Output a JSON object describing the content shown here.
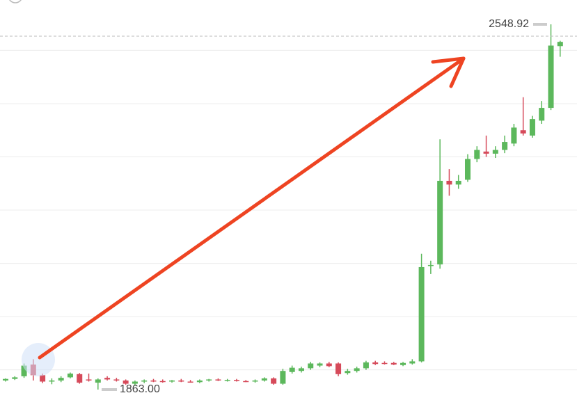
{
  "chart_data": {
    "type": "candlestick",
    "ylim": [
      1843.4,
      2594.6
    ],
    "yticks": [
      1900,
      2000,
      2100,
      2200,
      2300,
      2400,
      2500
    ],
    "grid": true,
    "up_color": "#5cb85c",
    "down_color": "#d64a5a",
    "high_marker": 2548.92,
    "low_marker": {
      "value": 1863,
      "label": "1863.00"
    },
    "open": [
      1880,
      1883,
      1888,
      1910,
      1890,
      1878,
      1880,
      1886,
      1892,
      1882,
      1876,
      1885,
      1882,
      1880,
      1874,
      1878,
      1880,
      1879,
      1878,
      1880,
      1878,
      1877,
      1880,
      1882,
      1880,
      1881,
      1879,
      1878,
      1880,
      1884,
      1874,
      1896,
      1898,
      1903,
      1908,
      1912,
      1912,
      1894,
      1898,
      1903,
      1914,
      1913,
      1913,
      1909,
      1912,
      1916,
      2095,
      2098,
      2255,
      2248,
      2257,
      2296,
      2310,
      2306,
      2313,
      2325,
      2350,
      2340,
      2368,
      2392,
      2508
    ],
    "high": [
      1884,
      1888,
      1912,
      1920,
      1893,
      1884,
      1888,
      1895,
      1894,
      1893,
      1884,
      1888,
      1885,
      1882,
      1880,
      1882,
      1883,
      1882,
      1881,
      1883,
      1881,
      1882,
      1883,
      1884,
      1883,
      1883,
      1881,
      1882,
      1886,
      1886,
      1902,
      1908,
      1906,
      1915,
      1914,
      1915,
      1914,
      1902,
      1906,
      1917,
      1917,
      1916,
      1915,
      1915,
      1920,
      2118,
      2105,
      2333,
      2277,
      2266,
      2305,
      2320,
      2340,
      2320,
      2340,
      2362,
      2412,
      2377,
      2405,
      2548.92,
      2518
    ],
    "low": [
      1878,
      1881,
      1885,
      1880,
      1875,
      1873,
      1877,
      1884,
      1874,
      1878,
      1863,
      1880,
      1878,
      1872,
      1870,
      1875,
      1877,
      1876,
      1876,
      1877,
      1876,
      1875,
      1878,
      1879,
      1878,
      1878,
      1877,
      1876,
      1878,
      1872,
      1872,
      1893,
      1895,
      1900,
      1905,
      1905,
      1888,
      1891,
      1895,
      1900,
      1909,
      1910,
      1909,
      1907,
      1910,
      1914,
      2080,
      2090,
      2227,
      2240,
      2253,
      2290,
      2300,
      2298,
      2307,
      2320,
      2340,
      2336,
      2362,
      2388,
      2488
    ],
    "close": [
      1883,
      1886,
      1908,
      1890,
      1878,
      1880,
      1885,
      1893,
      1876,
      1880,
      1882,
      1882,
      1880,
      1874,
      1878,
      1880,
      1879,
      1878,
      1880,
      1878,
      1877,
      1880,
      1882,
      1880,
      1881,
      1879,
      1878,
      1880,
      1884,
      1874,
      1898,
      1904,
      1903,
      1912,
      1912,
      1907,
      1892,
      1898,
      1903,
      1914,
      1911,
      1912,
      1910,
      1913,
      1916,
      2093,
      2097,
      2255,
      2248,
      2255,
      2296,
      2313,
      2306,
      2313,
      2328,
      2355,
      2344,
      2371,
      2392,
      2509,
      2516
    ]
  }
}
